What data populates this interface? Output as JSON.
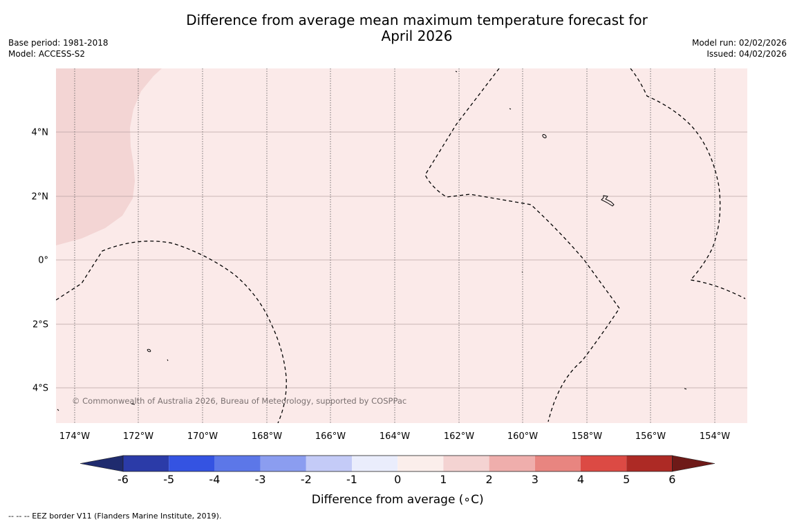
{
  "title": {
    "line1": "Difference from average mean maximum temperature forecast for",
    "line2": "April 2026"
  },
  "meta_left": {
    "base_period": "Base period: 1981-2018",
    "model": "Model: ACCESS-S2"
  },
  "meta_right": {
    "model_run": "Model run: 02/02/2026",
    "issued": "Issued: 04/02/2026"
  },
  "map": {
    "credit": "© Commonwealth of Australia 2026, Bureau of Meteorology, supported by COSPPac",
    "lat_labels": [
      "4°N",
      "2°N",
      "0°",
      "2°S",
      "4°S"
    ],
    "lon_labels": [
      "174°W",
      "172°W",
      "170°W",
      "168°W",
      "166°W",
      "164°W",
      "162°W",
      "160°W",
      "158°W",
      "156°W",
      "154°W"
    ],
    "fill_colors": {
      "class_0_1": "#fbeae9",
      "class_1_2": "#f3d5d4"
    }
  },
  "colorbar": {
    "title": "Difference from average (∘C)",
    "ticks": [
      "-6",
      "-5",
      "-4",
      "-3",
      "-2",
      "-1",
      "0",
      "1",
      "2",
      "3",
      "4",
      "5",
      "6"
    ],
    "low_arrow_color": "#1f2b6e",
    "high_arrow_color": "#6e1a18",
    "colors": [
      "#2b3ba8",
      "#3453e2",
      "#5c77e8",
      "#8b9df0",
      "#c4cbf7",
      "#eaedfc",
      "#fbeeeb",
      "#f4d3d2",
      "#efaeac",
      "#e88580",
      "#dc4a44",
      "#ad2a25"
    ]
  },
  "footnote": "--  --  -- EEZ border V11 (Flanders Marine Institute, 2019)."
}
